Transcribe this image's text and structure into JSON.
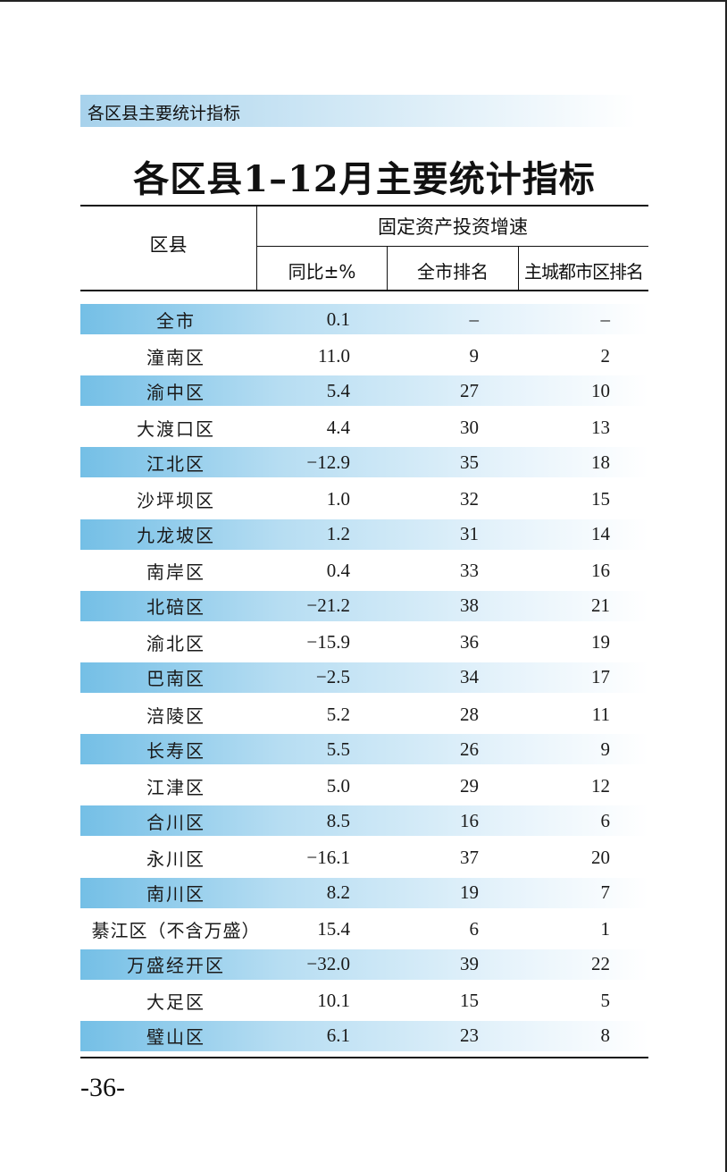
{
  "section_label": "各区县主要统计指标",
  "title": "各区县1–12月主要统计指标",
  "header": {
    "district": "区县",
    "group": "固定资产投资增速",
    "yoy": "同比±%",
    "city_rank": "全市排名",
    "main_rank": "主城都市区排名"
  },
  "rows": [
    {
      "name": "全市",
      "yoy": "0.1",
      "city_rank": "–",
      "main_rank": "–"
    },
    {
      "name": "潼南区",
      "yoy": "11.0",
      "city_rank": "9",
      "main_rank": "2"
    },
    {
      "name": "渝中区",
      "yoy": "5.4",
      "city_rank": "27",
      "main_rank": "10"
    },
    {
      "name": "大渡口区",
      "yoy": "4.4",
      "city_rank": "30",
      "main_rank": "13"
    },
    {
      "name": "江北区",
      "yoy": "−12.9",
      "city_rank": "35",
      "main_rank": "18"
    },
    {
      "name": "沙坪坝区",
      "yoy": "1.0",
      "city_rank": "32",
      "main_rank": "15"
    },
    {
      "name": "九龙坡区",
      "yoy": "1.2",
      "city_rank": "31",
      "main_rank": "14"
    },
    {
      "name": "南岸区",
      "yoy": "0.4",
      "city_rank": "33",
      "main_rank": "16"
    },
    {
      "name": "北碚区",
      "yoy": "−21.2",
      "city_rank": "38",
      "main_rank": "21"
    },
    {
      "name": "渝北区",
      "yoy": "−15.9",
      "city_rank": "36",
      "main_rank": "19"
    },
    {
      "name": "巴南区",
      "yoy": "−2.5",
      "city_rank": "34",
      "main_rank": "17"
    },
    {
      "name": "涪陵区",
      "yoy": "5.2",
      "city_rank": "28",
      "main_rank": "11"
    },
    {
      "name": "长寿区",
      "yoy": "5.5",
      "city_rank": "26",
      "main_rank": "9"
    },
    {
      "name": "江津区",
      "yoy": "5.0",
      "city_rank": "29",
      "main_rank": "12"
    },
    {
      "name": "合川区",
      "yoy": "8.5",
      "city_rank": "16",
      "main_rank": "6"
    },
    {
      "name": "永川区",
      "yoy": "−16.1",
      "city_rank": "37",
      "main_rank": "20"
    },
    {
      "name": "南川区",
      "yoy": "8.2",
      "city_rank": "19",
      "main_rank": "7"
    },
    {
      "name": "綦江区（不含万盛）",
      "yoy": "15.4",
      "city_rank": "6",
      "main_rank": "1"
    },
    {
      "name": "万盛经开区",
      "yoy": "−32.0",
      "city_rank": "39",
      "main_rank": "22"
    },
    {
      "name": "大足区",
      "yoy": "10.1",
      "city_rank": "15",
      "main_rank": "5"
    },
    {
      "name": "璧山区",
      "yoy": "6.1",
      "city_rank": "23",
      "main_rank": "8"
    }
  ],
  "page_number": "-36-"
}
